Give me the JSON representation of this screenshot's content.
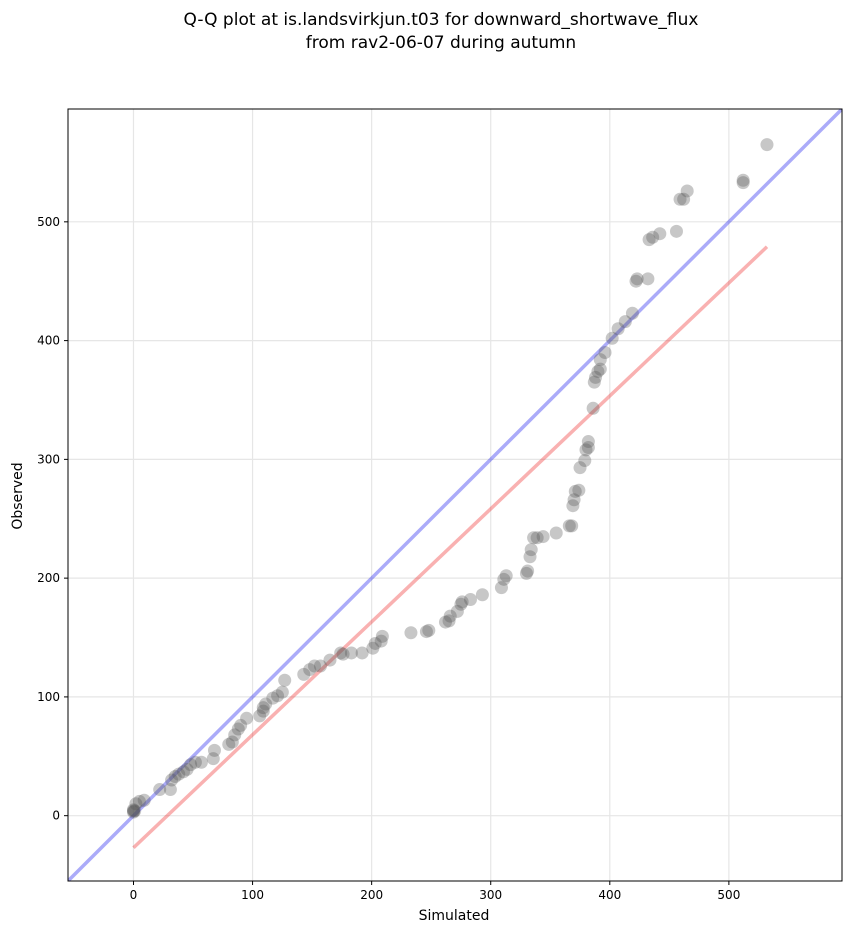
{
  "chart_data": {
    "type": "scatter",
    "title_line1": "Q-Q plot at is.landsvirkjun.t03 for downward_shortwave_flux",
    "title_line2": "from rav2-06-07 during autumn",
    "xlabel": "Simulated",
    "ylabel": "Observed",
    "xlim": [
      -55,
      595
    ],
    "ylim": [
      -55,
      595
    ],
    "xticks": [
      0,
      100,
      200,
      300,
      400,
      500
    ],
    "yticks": [
      0,
      100,
      200,
      300,
      400,
      500
    ],
    "grid": true,
    "reference_line": {
      "color": "#0000ee",
      "opacity": 0.33,
      "x": [
        -55,
        595
      ],
      "y": [
        -55,
        595
      ]
    },
    "fit_line": {
      "color": "#ee1111",
      "opacity": 0.33,
      "x": [
        0,
        532
      ],
      "y": [
        -27,
        479
      ]
    },
    "points_color": "#555555",
    "points": [
      [
        0,
        3
      ],
      [
        0,
        4
      ],
      [
        0,
        5
      ],
      [
        1,
        4
      ],
      [
        2,
        10
      ],
      [
        5,
        12
      ],
      [
        9,
        13
      ],
      [
        22,
        22
      ],
      [
        31,
        22
      ],
      [
        32,
        30
      ],
      [
        35,
        33
      ],
      [
        38,
        35
      ],
      [
        42,
        37
      ],
      [
        45,
        39
      ],
      [
        48,
        43
      ],
      [
        52,
        45
      ],
      [
        57,
        45
      ],
      [
        67,
        48
      ],
      [
        68,
        55
      ],
      [
        80,
        60
      ],
      [
        83,
        62
      ],
      [
        85,
        68
      ],
      [
        88,
        73
      ],
      [
        90,
        76
      ],
      [
        95,
        82
      ],
      [
        106,
        84
      ],
      [
        109,
        88
      ],
      [
        109,
        91
      ],
      [
        111,
        94
      ],
      [
        117,
        99
      ],
      [
        121,
        101
      ],
      [
        125,
        104
      ],
      [
        127,
        114
      ],
      [
        143,
        119
      ],
      [
        148,
        123
      ],
      [
        152,
        126
      ],
      [
        157,
        126
      ],
      [
        165,
        131
      ],
      [
        174,
        137
      ],
      [
        176,
        136
      ],
      [
        183,
        137
      ],
      [
        192,
        137
      ],
      [
        201,
        141
      ],
      [
        203,
        145
      ],
      [
        208,
        147
      ],
      [
        209,
        151
      ],
      [
        233,
        154
      ],
      [
        246,
        155
      ],
      [
        248,
        156
      ],
      [
        262,
        163
      ],
      [
        265,
        164
      ],
      [
        266,
        168
      ],
      [
        272,
        172
      ],
      [
        275,
        178
      ],
      [
        276,
        180
      ],
      [
        283,
        182
      ],
      [
        293,
        186
      ],
      [
        309,
        192
      ],
      [
        311,
        199
      ],
      [
        313,
        202
      ],
      [
        330,
        204
      ],
      [
        331,
        206
      ],
      [
        333,
        218
      ],
      [
        334,
        224
      ],
      [
        336,
        234
      ],
      [
        339,
        234
      ],
      [
        344,
        235
      ],
      [
        355,
        238
      ],
      [
        366,
        244
      ],
      [
        368,
        244
      ],
      [
        369,
        261
      ],
      [
        370,
        266
      ],
      [
        371,
        273
      ],
      [
        374,
        274
      ],
      [
        375,
        293
      ],
      [
        379,
        299
      ],
      [
        380,
        308
      ],
      [
        382,
        310
      ],
      [
        382,
        315
      ],
      [
        386,
        343
      ],
      [
        387,
        365
      ],
      [
        388,
        369
      ],
      [
        390,
        374
      ],
      [
        392,
        376
      ],
      [
        392,
        384
      ],
      [
        396,
        390
      ],
      [
        402,
        402
      ],
      [
        407,
        410
      ],
      [
        413,
        416
      ],
      [
        419,
        423
      ],
      [
        422,
        450
      ],
      [
        423,
        452
      ],
      [
        432,
        452
      ],
      [
        433,
        485
      ],
      [
        436,
        487
      ],
      [
        442,
        490
      ],
      [
        456,
        492
      ],
      [
        459,
        519
      ],
      [
        462,
        519
      ],
      [
        465,
        526
      ],
      [
        512,
        533
      ],
      [
        512,
        535
      ],
      [
        532,
        565
      ]
    ]
  }
}
